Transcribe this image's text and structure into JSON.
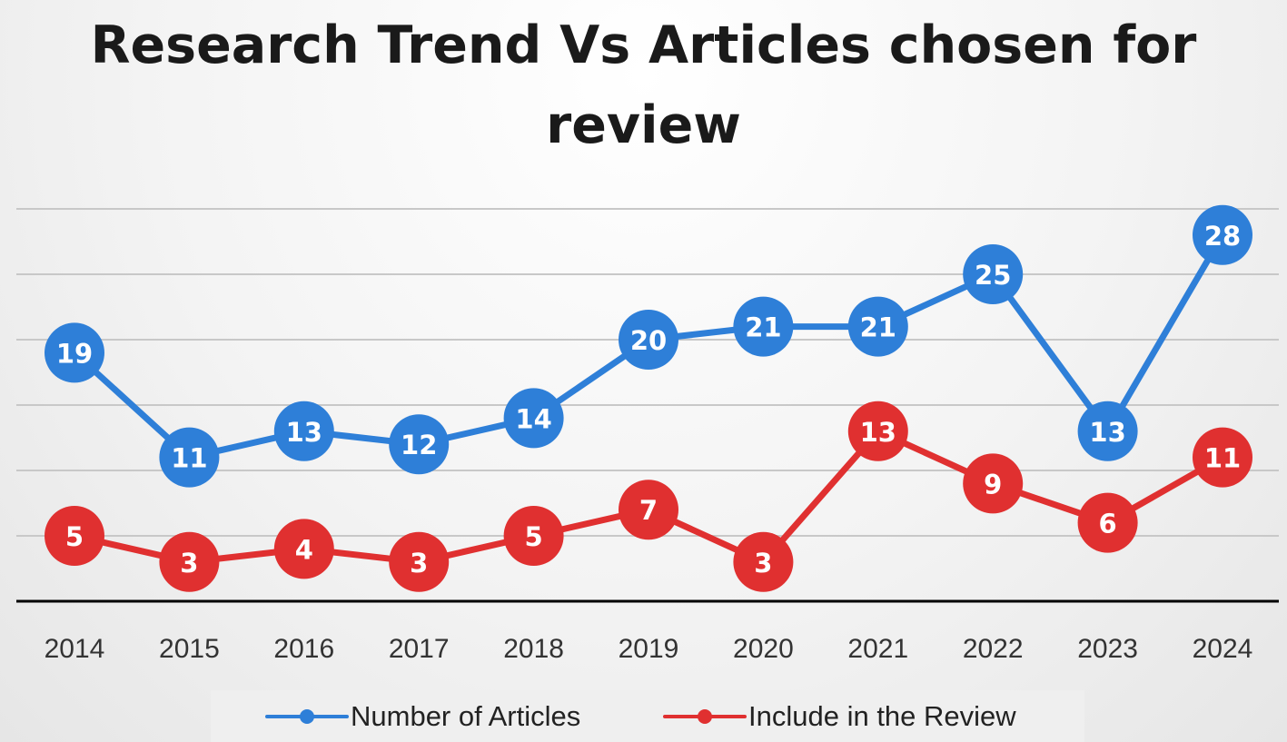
{
  "title": "Research Trend Vs Articles chosen for review",
  "colors": {
    "series_1": "#2e7fd8",
    "series_2": "#e03030",
    "grid": "#c8c8c8",
    "axis": "#000000",
    "label": "#ffffff"
  },
  "legend": {
    "items": [
      {
        "label": "Number of Articles",
        "color": "#2e7fd8"
      },
      {
        "label": "Include in the Review",
        "color": "#e03030"
      }
    ]
  },
  "chart_data": {
    "type": "line",
    "title": "Research Trend Vs Articles chosen for review",
    "xlabel": "",
    "ylabel": "",
    "categories": [
      "2014",
      "2015",
      "2016",
      "2017",
      "2018",
      "2019",
      "2020",
      "2021",
      "2022",
      "2023",
      "2024"
    ],
    "series": [
      {
        "name": "Number of Articles",
        "color": "#2e7fd8",
        "values": [
          19,
          11,
          13,
          12,
          14,
          20,
          21,
          21,
          25,
          13,
          28
        ]
      },
      {
        "name": "Include in the Review",
        "color": "#e03030",
        "values": [
          5,
          3,
          4,
          3,
          5,
          7,
          3,
          13,
          9,
          6,
          11
        ]
      }
    ],
    "ylim": [
      0,
      30
    ],
    "grid": true,
    "y_tick_labels_shown": false,
    "data_labels": true,
    "legend_position": "bottom"
  }
}
